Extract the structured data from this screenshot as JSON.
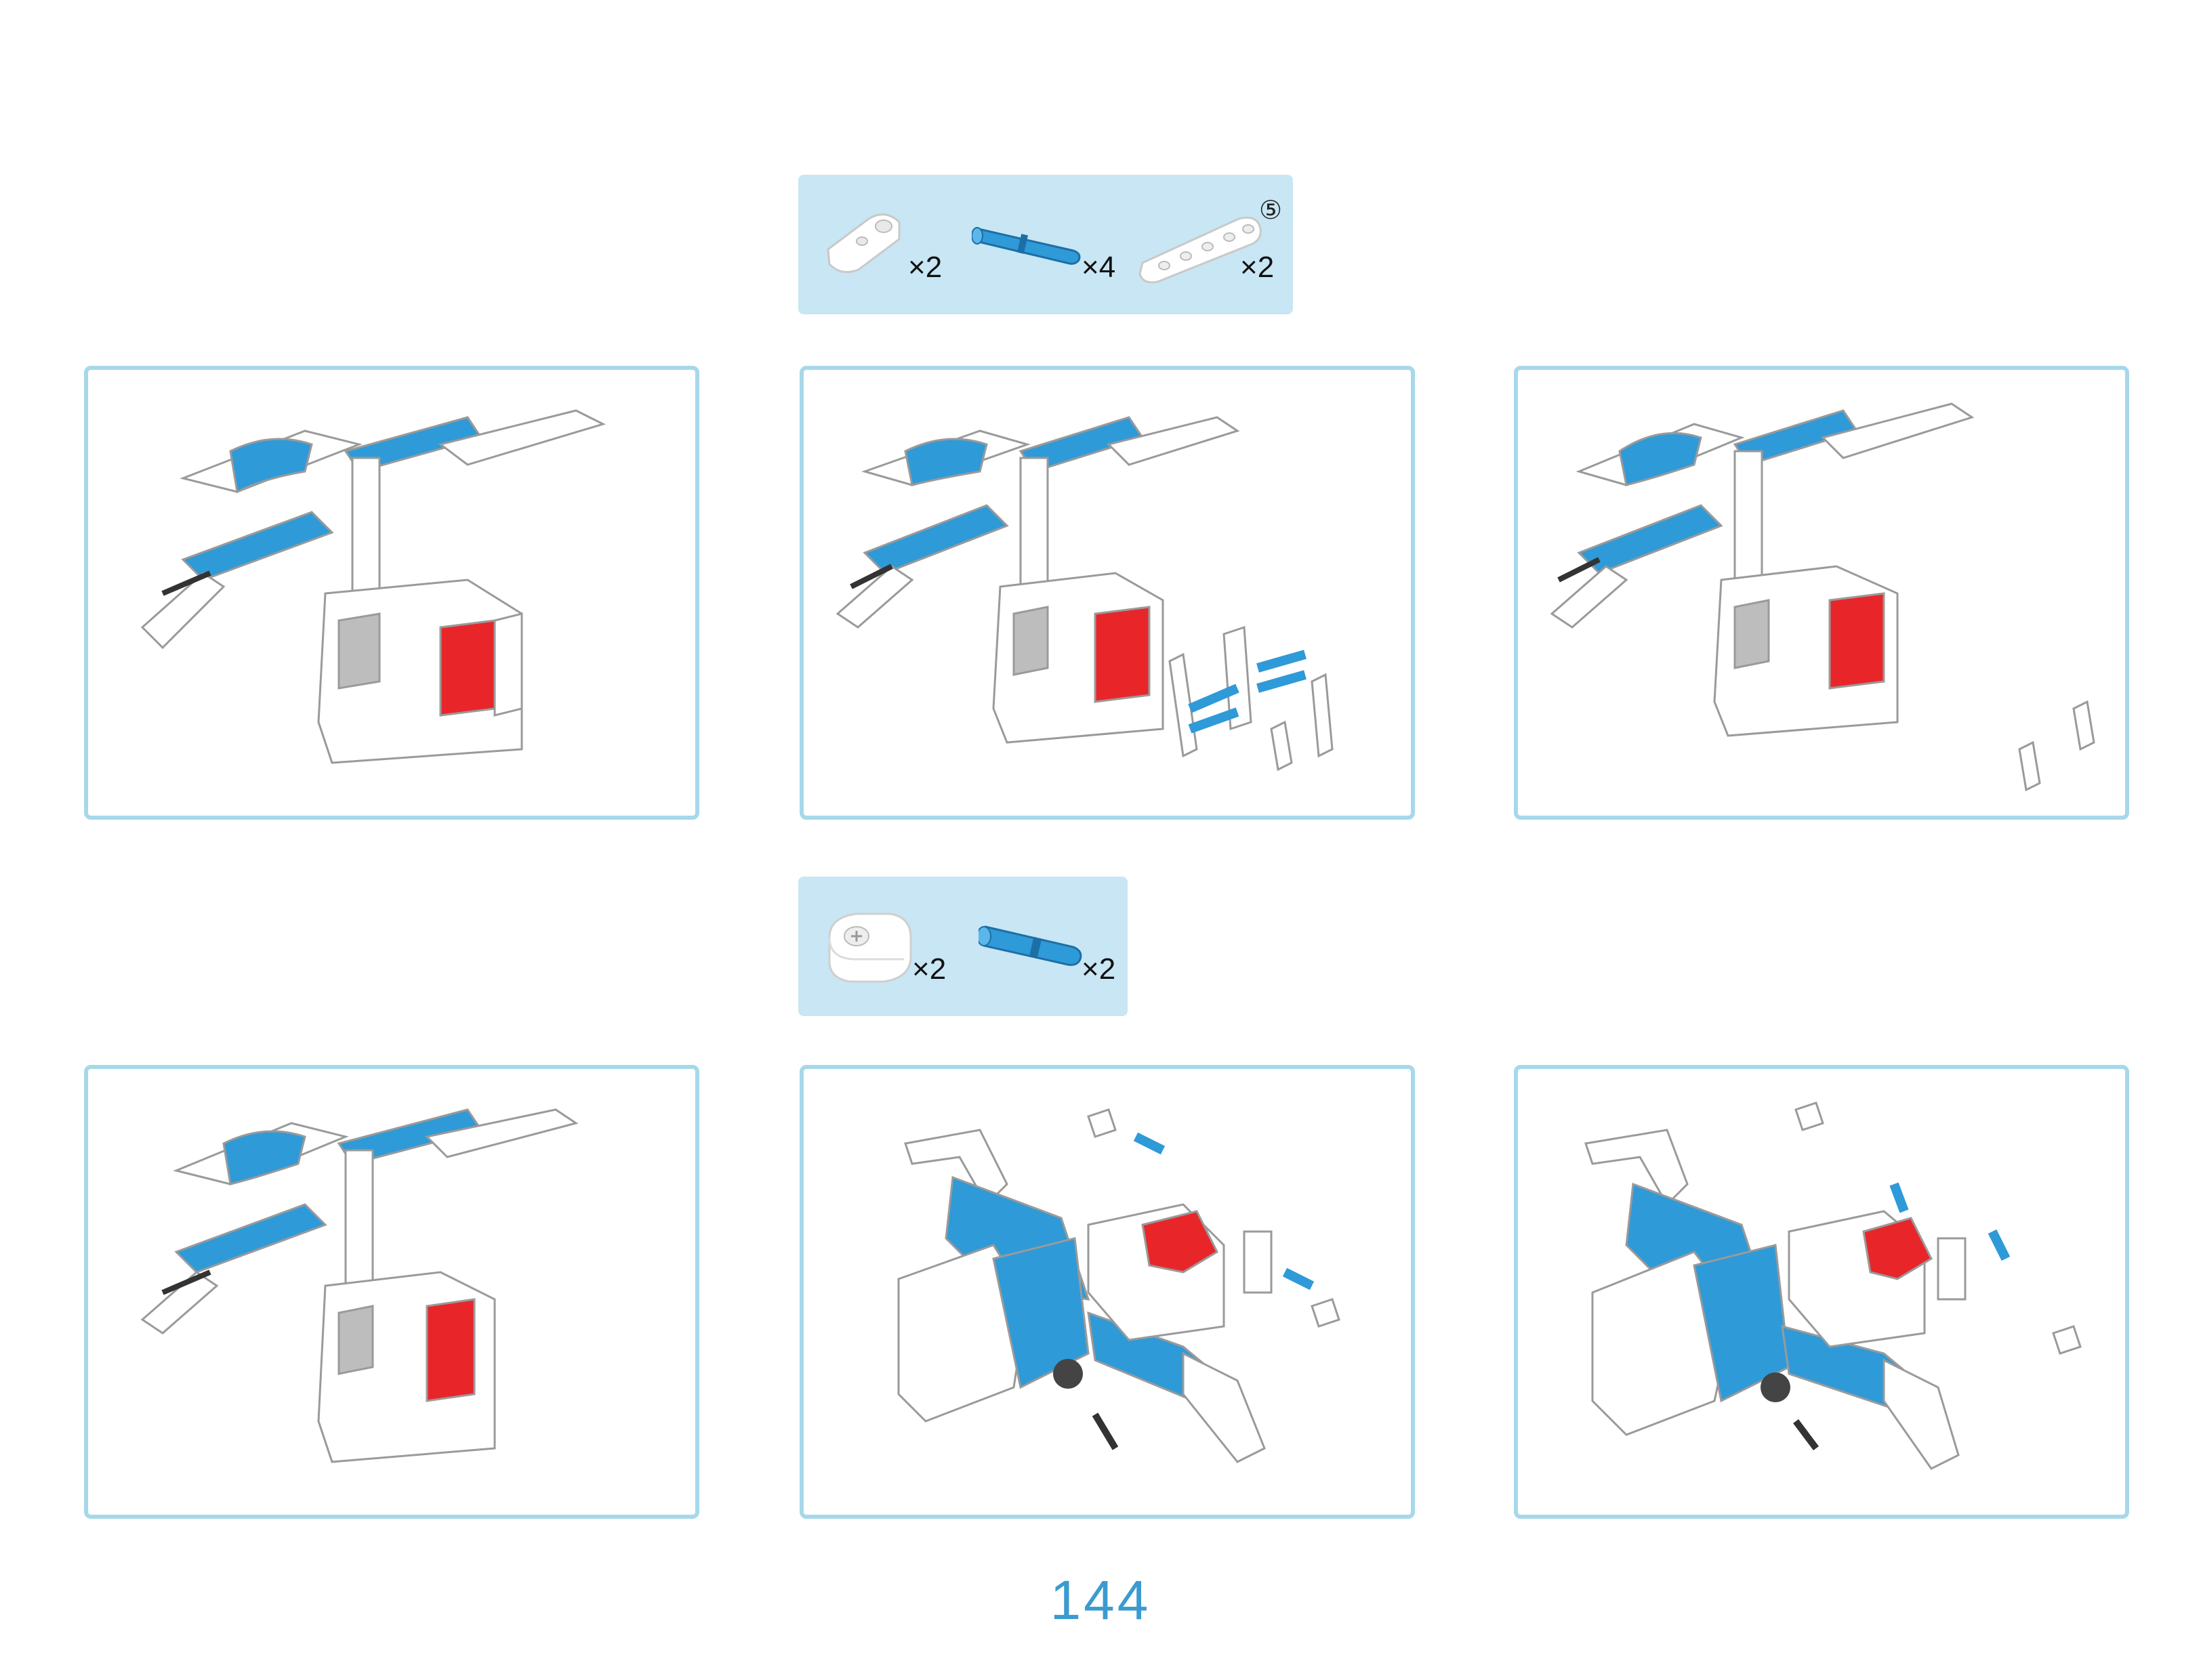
{
  "page_number": "144",
  "parts_top": {
    "step_marker": "⑤",
    "items": [
      {
        "icon": "white-connector-beam-icon",
        "quantity": "×2"
      },
      {
        "icon": "blue-axle-pin-icon",
        "quantity": "×4"
      },
      {
        "icon": "white-liftarm-5-icon",
        "quantity": "×2"
      }
    ]
  },
  "parts_bottom": {
    "items": [
      {
        "icon": "white-cross-connector-icon",
        "quantity": "×2"
      },
      {
        "icon": "blue-friction-pin-icon",
        "quantity": "×2"
      }
    ]
  },
  "colors": {
    "panel_border": "#a7d8ea",
    "parts_box_bg": "#c8e6f3",
    "brick_blue": "#2f9ad8",
    "motor_red": "#e8262a",
    "page_number": "#3b9bcf"
  }
}
